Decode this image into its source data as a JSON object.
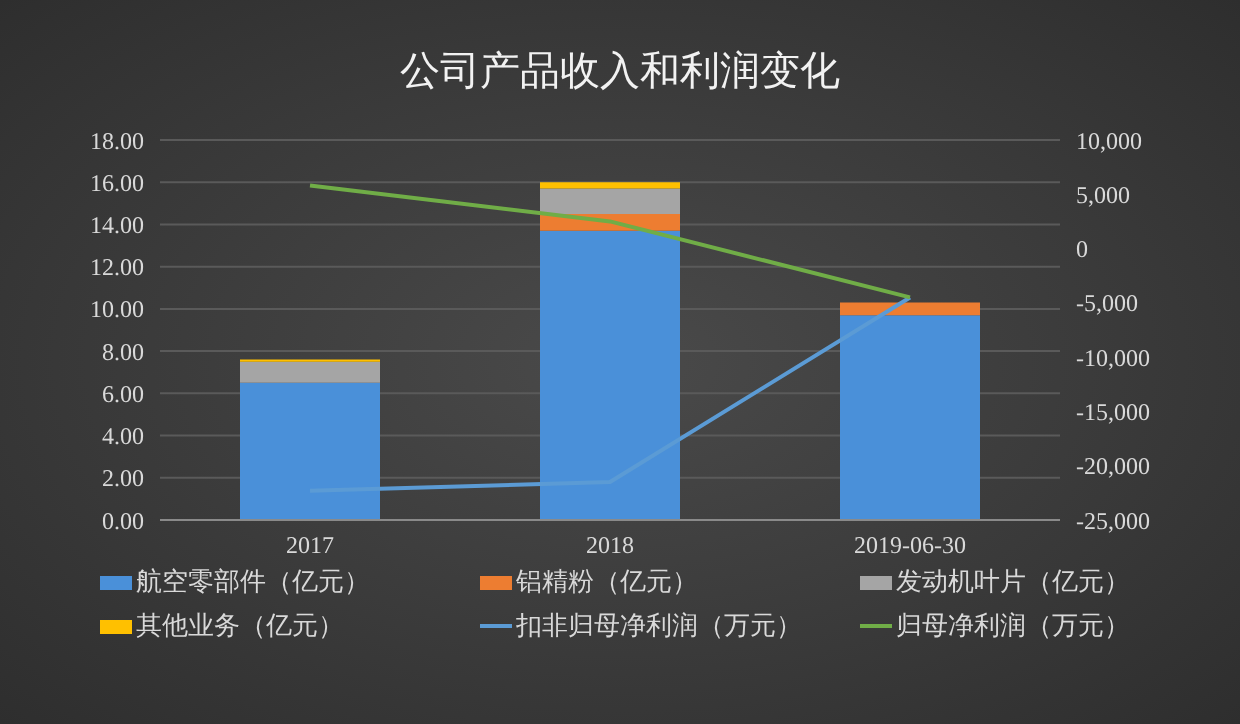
{
  "chart_data": {
    "type": "bar",
    "title": "公司产品收入和利润变化",
    "categories": [
      "2017",
      "2018",
      "2019-06-30"
    ],
    "stacked": true,
    "series": [
      {
        "name": "航空零部件（亿元）",
        "color": "#4a90d9",
        "values": [
          6.5,
          13.7,
          9.7
        ]
      },
      {
        "name": "铝精粉（亿元）",
        "color": "#ed7d31",
        "values": [
          0,
          0.8,
          0.6
        ]
      },
      {
        "name": "发动机叶片（亿元）",
        "color": "#a5a5a5",
        "values": [
          1.0,
          1.2,
          0
        ]
      },
      {
        "name": "其他业务（亿元）",
        "color": "#ffc000",
        "values": [
          0.1,
          0.3,
          0
        ]
      },
      {
        "name": "扣非归母净利润（万元）",
        "type": "line",
        "axis": "y2",
        "color": "#5b9bd5",
        "values": [
          -22300,
          -21500,
          -4500
        ]
      },
      {
        "name": "归母净利润（万元）",
        "type": "line",
        "axis": "y2",
        "color": "#70ad47",
        "values": [
          5800,
          2500,
          -4500
        ]
      }
    ],
    "ylim": [
      0,
      18
    ],
    "yticks": [
      {
        "value": 0,
        "label": "0.00"
      },
      {
        "value": 2,
        "label": "2.00"
      },
      {
        "value": 4,
        "label": "4.00"
      },
      {
        "value": 6,
        "label": "6.00"
      },
      {
        "value": 8,
        "label": "8.00"
      },
      {
        "value": 10,
        "label": "10.00"
      },
      {
        "value": 12,
        "label": "12.00"
      },
      {
        "value": 14,
        "label": "14.00"
      },
      {
        "value": 16,
        "label": "16.00"
      },
      {
        "value": 18,
        "label": "18.00"
      }
    ],
    "y2lim": [
      -25000,
      10000
    ],
    "y2ticks": [
      {
        "value": -25000,
        "label": "-25,000"
      },
      {
        "value": -20000,
        "label": "-20,000"
      },
      {
        "value": -15000,
        "label": "-15,000"
      },
      {
        "value": -10000,
        "label": "-10,000"
      },
      {
        "value": -5000,
        "label": "-5,000"
      },
      0,
      {
        "value": 5000,
        "label": "5,000"
      },
      {
        "value": 10000,
        "label": "10,000"
      }
    ],
    "grid": "y",
    "legend": "bottom",
    "marker": "none"
  }
}
